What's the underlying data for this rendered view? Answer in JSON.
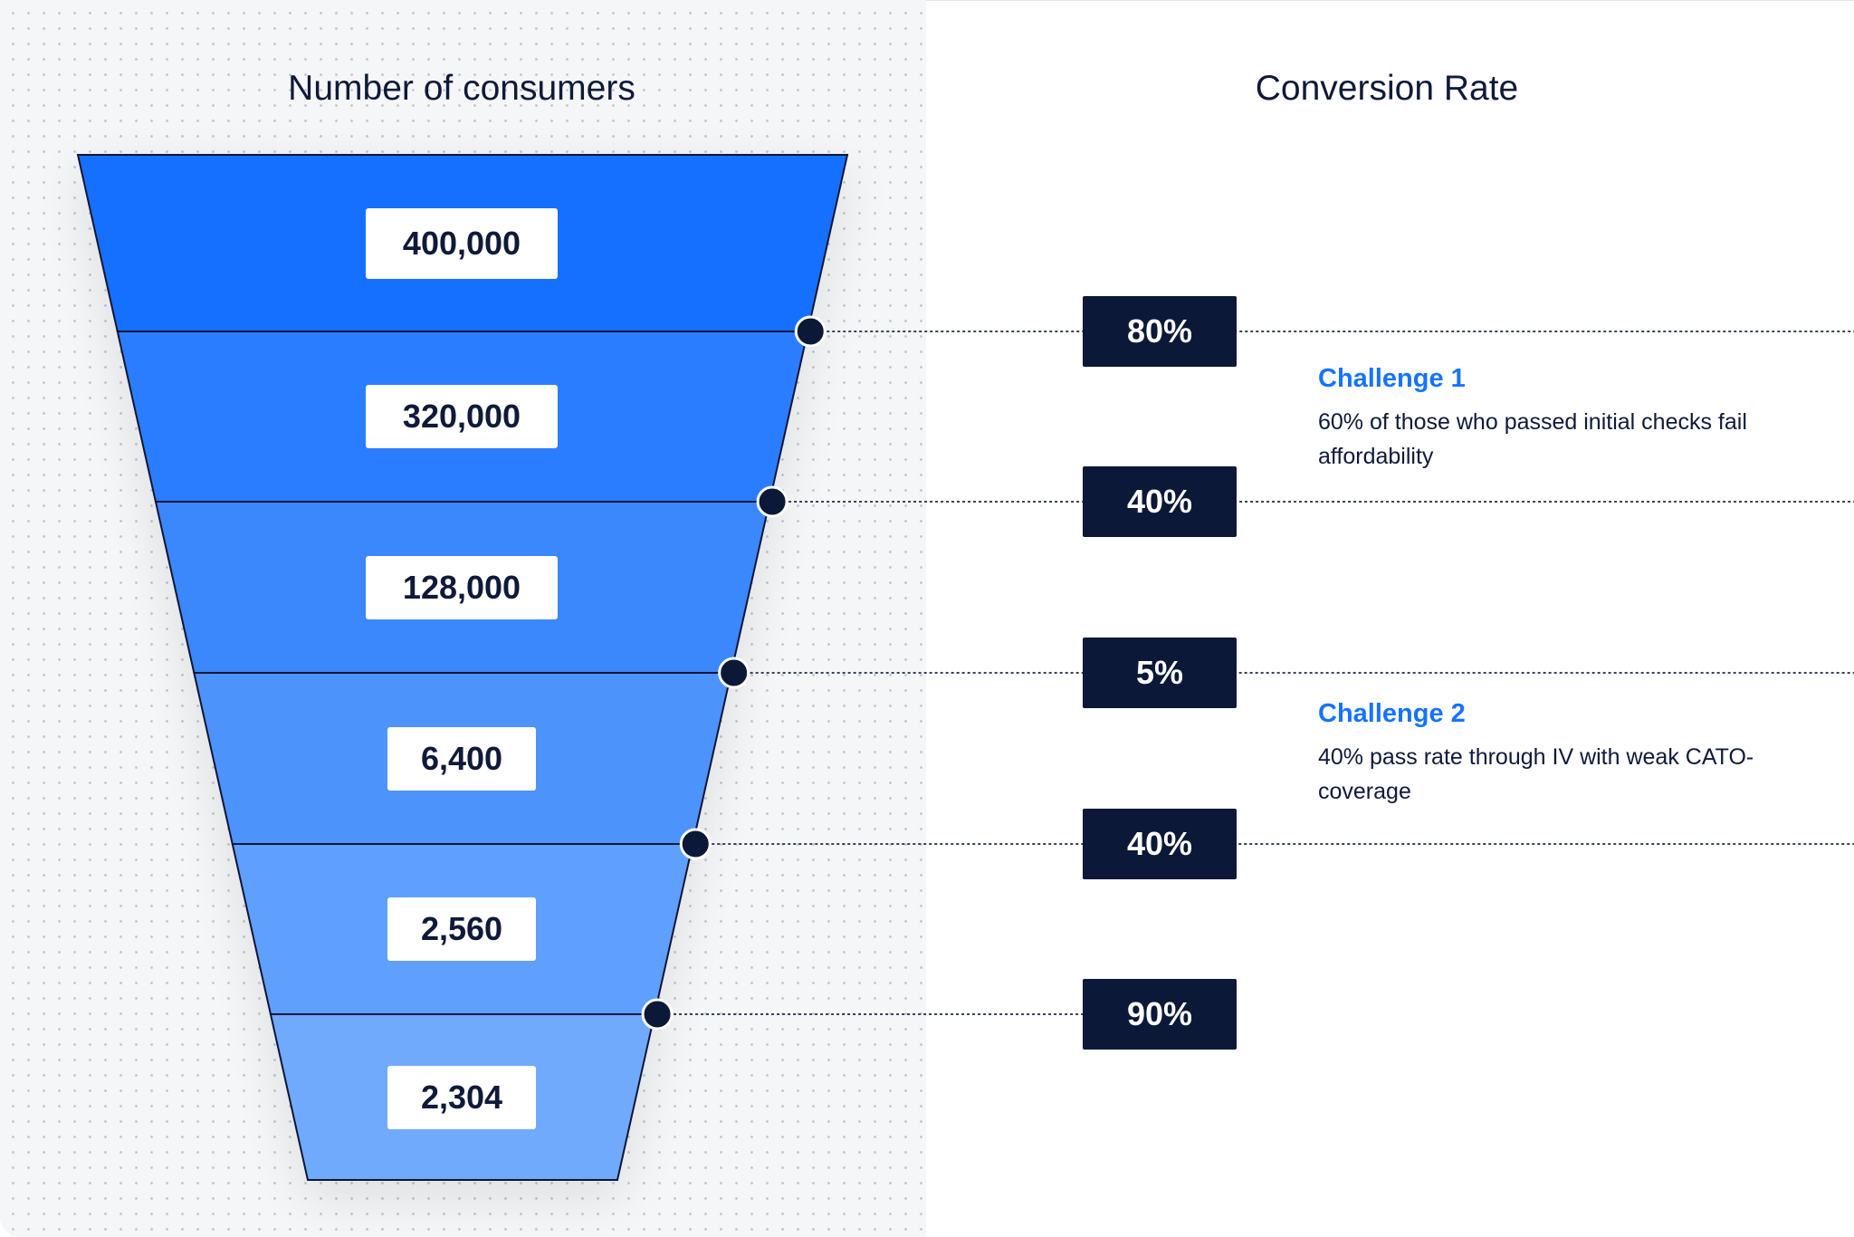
{
  "titles": {
    "left": "Number of consumers",
    "right": "Conversion Rate"
  },
  "chart_data": {
    "type": "funnel",
    "title": "Number of consumers",
    "stages": [
      400000,
      320000,
      128000,
      6400,
      2560,
      2304
    ],
    "stage_labels": [
      "400,000",
      "320,000",
      "128,000",
      "6,400",
      "2,560",
      "2,304"
    ],
    "conversion_title": "Conversion Rate",
    "conversion_rates": [
      "80%",
      "40%",
      "5%",
      "40%",
      "90%"
    ],
    "stage_colors": [
      "#1570ff",
      "#2a7dff",
      "#3b87fc",
      "#4d93fc",
      "#5e9ffd",
      "#70aafd"
    ],
    "annotations": [
      {
        "title": "Challenge 1",
        "text": "60% of those who passed initial checks fail affordability"
      },
      {
        "title": "Challenge 2",
        "text": "40% pass rate through IV with weak CATO-coverage"
      }
    ]
  },
  "colors": {
    "accent": "#1673ff",
    "rate_box": "#0b1838",
    "text": "#0f1a3a"
  }
}
